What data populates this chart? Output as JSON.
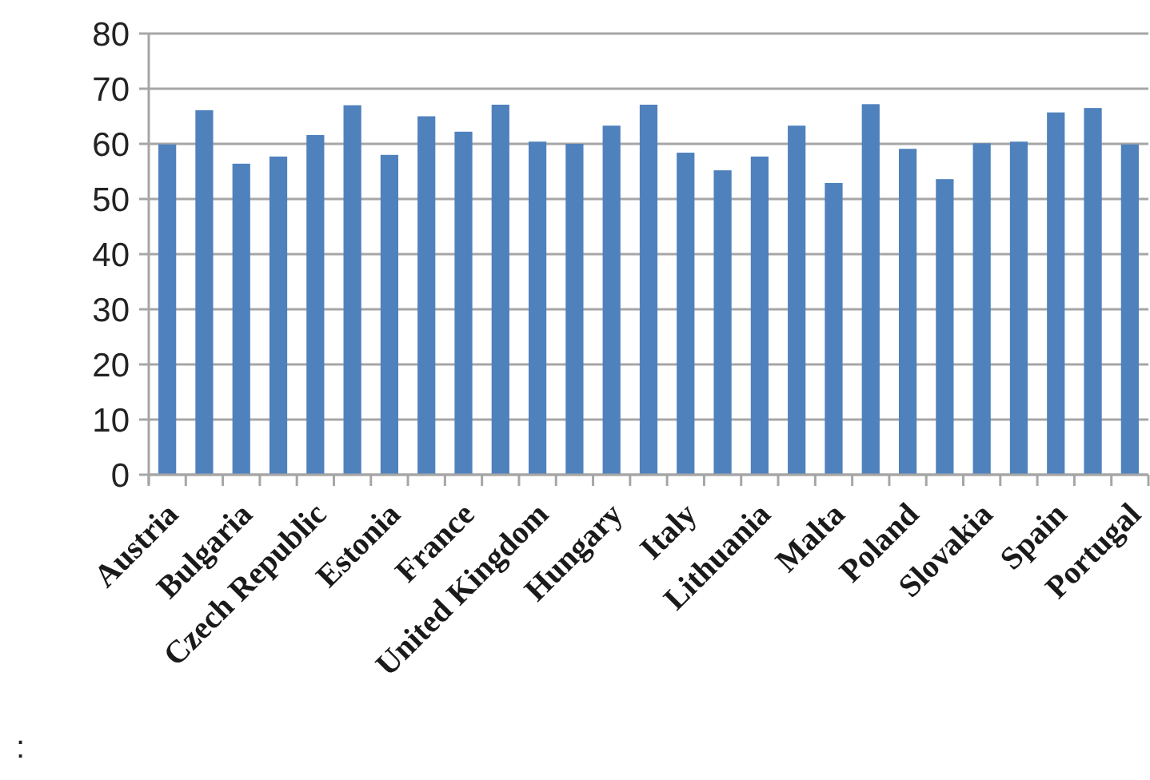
{
  "chart_data": {
    "type": "bar",
    "categories": [
      "Austria",
      null,
      "Bulgaria",
      null,
      "Czech Republic",
      null,
      "Estonia",
      null,
      "France",
      null,
      "United Kingdom",
      null,
      "Hungary",
      null,
      "Italy",
      null,
      "Lithuania",
      null,
      "Malta",
      null,
      "Poland",
      null,
      "Slovakia",
      null,
      "Spain",
      null,
      "Portugal"
    ],
    "values": [
      59.9,
      66.1,
      56.4,
      57.7,
      61.6,
      67.0,
      58.0,
      65.0,
      62.2,
      67.1,
      60.4,
      60.0,
      63.3,
      67.1,
      58.4,
      55.2,
      57.7,
      63.3,
      52.9,
      67.2,
      59.1,
      53.6,
      60.1,
      60.4,
      65.7,
      66.5,
      59.9
    ],
    "color": "#4f81bd",
    "ylim": [
      0,
      80
    ],
    "yticks": [
      0,
      10,
      20,
      30,
      40,
      50,
      60,
      70,
      80
    ],
    "grid": "y",
    "annotations": [
      ":"
    ]
  }
}
